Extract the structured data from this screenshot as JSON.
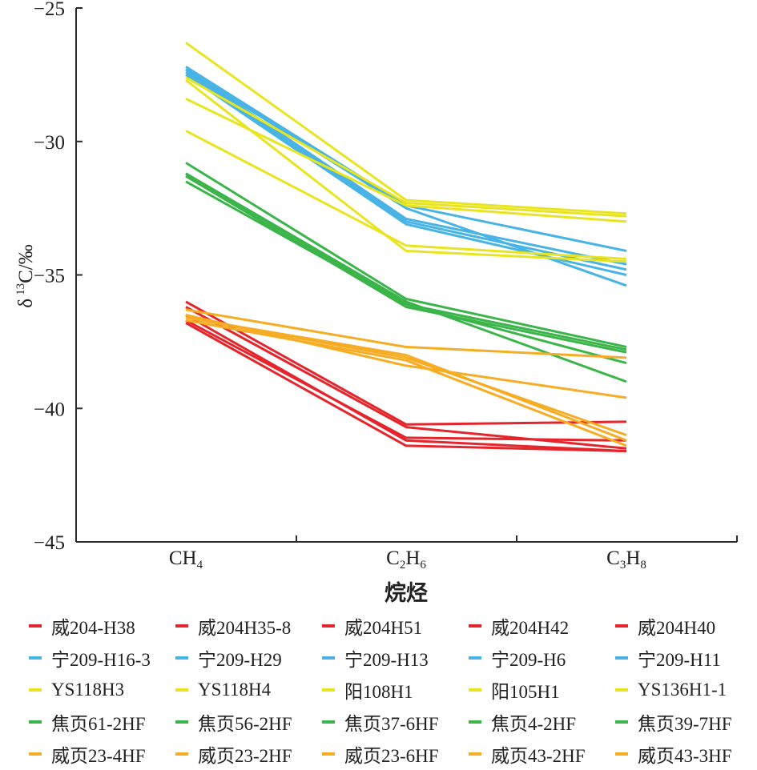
{
  "chart_data": {
    "type": "line",
    "title": "",
    "xlabel": "烷烃",
    "ylabel": "δ 13C/‰",
    "ylabel_parts": {
      "delta": "δ",
      "sup": "13",
      "rest": "C/‰"
    },
    "categories": [
      "CH4",
      "C2H6",
      "C3H8"
    ],
    "category_parts": [
      [
        {
          "t": "CH",
          "s": false
        },
        {
          "t": "4",
          "s": true
        }
      ],
      [
        {
          "t": "C",
          "s": false
        },
        {
          "t": "2",
          "s": true
        },
        {
          "t": "H",
          "s": false
        },
        {
          "t": "6",
          "s": true
        }
      ],
      [
        {
          "t": "C",
          "s": false
        },
        {
          "t": "3",
          "s": true
        },
        {
          "t": "H",
          "s": false
        },
        {
          "t": "8",
          "s": true
        }
      ]
    ],
    "ylim": [
      -45,
      -25
    ],
    "yticks": [
      -25,
      -30,
      -35,
      -40,
      -45
    ],
    "ytick_labels": [
      "−25",
      "−30",
      "−35",
      "−40",
      "−45"
    ],
    "grid": false,
    "legend_position": "bottom",
    "groups": [
      {
        "color": "#e5252b",
        "series": [
          {
            "name": "威204-H38",
            "values": [
              -36.0,
              -40.6,
              -40.5
            ]
          },
          {
            "name": "威204H35-8",
            "values": [
              -36.2,
              -40.7,
              -41.5
            ]
          },
          {
            "name": "威204H51",
            "values": [
              -36.5,
              -41.2,
              -41.6
            ]
          },
          {
            "name": "威204H42",
            "values": [
              -36.7,
              -41.1,
              -41.2
            ]
          },
          {
            "name": "威204H40",
            "values": [
              -36.8,
              -41.4,
              -41.6
            ]
          }
        ]
      },
      {
        "color": "#48b3e5",
        "series": [
          {
            "name": "宁209-H16-3",
            "values": [
              -27.2,
              -32.4,
              -34.1
            ]
          },
          {
            "name": "宁209-H29",
            "values": [
              -27.3,
              -32.9,
              -34.6
            ]
          },
          {
            "name": "宁209-H13",
            "values": [
              -27.4,
              -33.0,
              -34.8
            ]
          },
          {
            "name": "宁209-H6",
            "values": [
              -27.5,
              -33.1,
              -35.0
            ]
          },
          {
            "name": "宁209-H11",
            "values": [
              -27.3,
              -32.5,
              -35.4
            ]
          }
        ]
      },
      {
        "color": "#e8e520",
        "series": [
          {
            "name": "YS118H3",
            "values": [
              -26.3,
              -32.2,
              -32.7
            ]
          },
          {
            "name": "YS118H4",
            "values": [
              -27.6,
              -32.3,
              -32.8
            ]
          },
          {
            "name": "阳108H1",
            "values": [
              -28.4,
              -32.4,
              -33.0
            ]
          },
          {
            "name": "阳105H1",
            "values": [
              -29.6,
              -33.9,
              -34.4
            ]
          },
          {
            "name": "YS136H1-1",
            "values": [
              -27.7,
              -34.1,
              -34.5
            ]
          }
        ]
      },
      {
        "color": "#3bb54a",
        "series": [
          {
            "name": "焦页61-2HF",
            "values": [
              -30.8,
              -35.9,
              -37.7
            ]
          },
          {
            "name": "焦页56-2HF",
            "values": [
              -31.2,
              -36.1,
              -37.8
            ]
          },
          {
            "name": "焦页37-6HF",
            "values": [
              -31.3,
              -36.2,
              -37.9
            ]
          },
          {
            "name": "焦页4-2HF",
            "values": [
              -31.5,
              -36.1,
              -38.3
            ]
          },
          {
            "name": "焦页39-7HF",
            "values": [
              -31.2,
              -36.0,
              -39.0
            ]
          }
        ]
      },
      {
        "color": "#f6ad24",
        "series": [
          {
            "name": "威页23-4HF",
            "values": [
              -36.3,
              -37.7,
              -38.1
            ]
          },
          {
            "name": "威页23-2HF",
            "values": [
              -36.5,
              -38.4,
              -39.6
            ]
          },
          {
            "name": "威页23-6HF",
            "values": [
              -36.6,
              -38.1,
              -41.0
            ]
          },
          {
            "name": "威页43-2HF",
            "values": [
              -36.6,
              -38.0,
              -41.2
            ]
          },
          {
            "name": "威页43-3HF",
            "values": [
              -36.7,
              -38.2,
              -41.4
            ]
          }
        ]
      }
    ]
  }
}
